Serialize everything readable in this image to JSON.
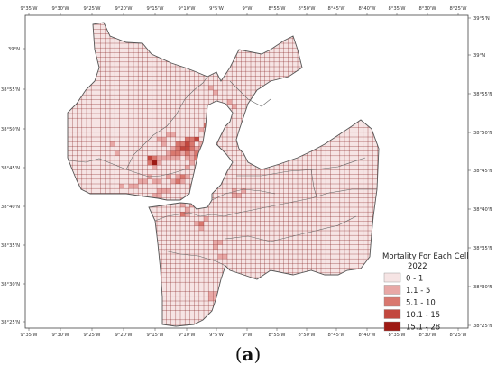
{
  "figure": {
    "caption_open": "(",
    "caption_letter": "a",
    "caption_close": ")"
  },
  "axes": {
    "top_ticks": [
      "9°35'W",
      "9°30'W",
      "9°25'W",
      "9°20'W",
      "9°15'W",
      "9°10'W",
      "9°5'W",
      "9°W",
      "8°55'W",
      "8°50'W",
      "8°45'W",
      "8°40'W",
      "8°35'W",
      "8°30'W",
      "8°25'W"
    ],
    "bottom_ticks": [
      "9°35'W",
      "9°30'W",
      "9°25'W",
      "9°20'W",
      "9°15'W",
      "9°10'W",
      "9°5'W",
      "9°W",
      "8°55'W",
      "8°50'W",
      "8°45'W",
      "8°40'W",
      "8°35'W",
      "8°30'W",
      "8°25'W"
    ],
    "left_ticks": [
      "39°N",
      "38°55'N",
      "38°50'N",
      "38°45'N",
      "38°40'N",
      "38°35'N",
      "38°30'N",
      "38°25'N"
    ],
    "right_ticks": [
      "39°5'N",
      "39°N",
      "38°55'N",
      "38°50'N",
      "38°45'N",
      "38°40'N",
      "38°35'N",
      "38°30'N",
      "38°25'N"
    ]
  },
  "legend": {
    "title_line1": "Mortality For Each Cell",
    "title_line2": "2022",
    "classes": [
      {
        "label": "0 - 1",
        "color": "#f6e4e4"
      },
      {
        "label": "1.1 - 5",
        "color": "#e8a8a6"
      },
      {
        "label": "5.1 - 10",
        "color": "#d9786f"
      },
      {
        "label": "10.1 - 15",
        "color": "#c2473e"
      },
      {
        "label": "15.1 - 28",
        "color": "#9e1a14"
      }
    ]
  },
  "colors": {
    "grid_line": "#8a2b2b",
    "boundary": "#555555",
    "frame": "#444444",
    "water": "#ffffff"
  }
}
